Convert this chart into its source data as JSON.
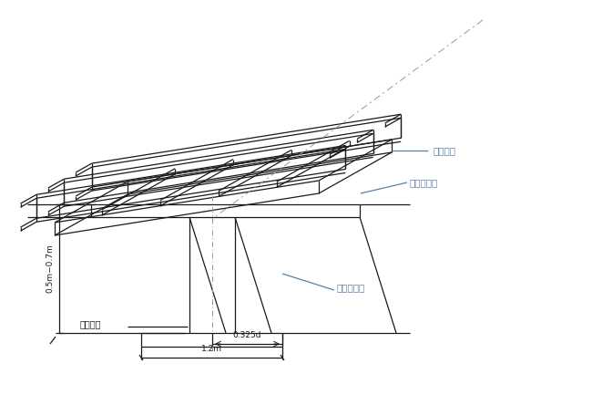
{
  "bg_color": "#ffffff",
  "line_color": "#1a1a1a",
  "label_color": "#5b7fa6",
  "dash_color": "#7a9fc0",
  "text_color": "#1a1a1a",
  "fig_width": 6.5,
  "fig_height": 4.33,
  "dpi": 100,
  "labels": {
    "positioning_steel": "定位型鉢",
    "inner_edge_line1": "围护内边线",
    "inner_edge_line2": "围护内边线",
    "center_axis": "中心轴线",
    "dim_height": "0.5m−0.7m",
    "dim_width1": "0.325d",
    "dim_width2": "1.2m"
  }
}
